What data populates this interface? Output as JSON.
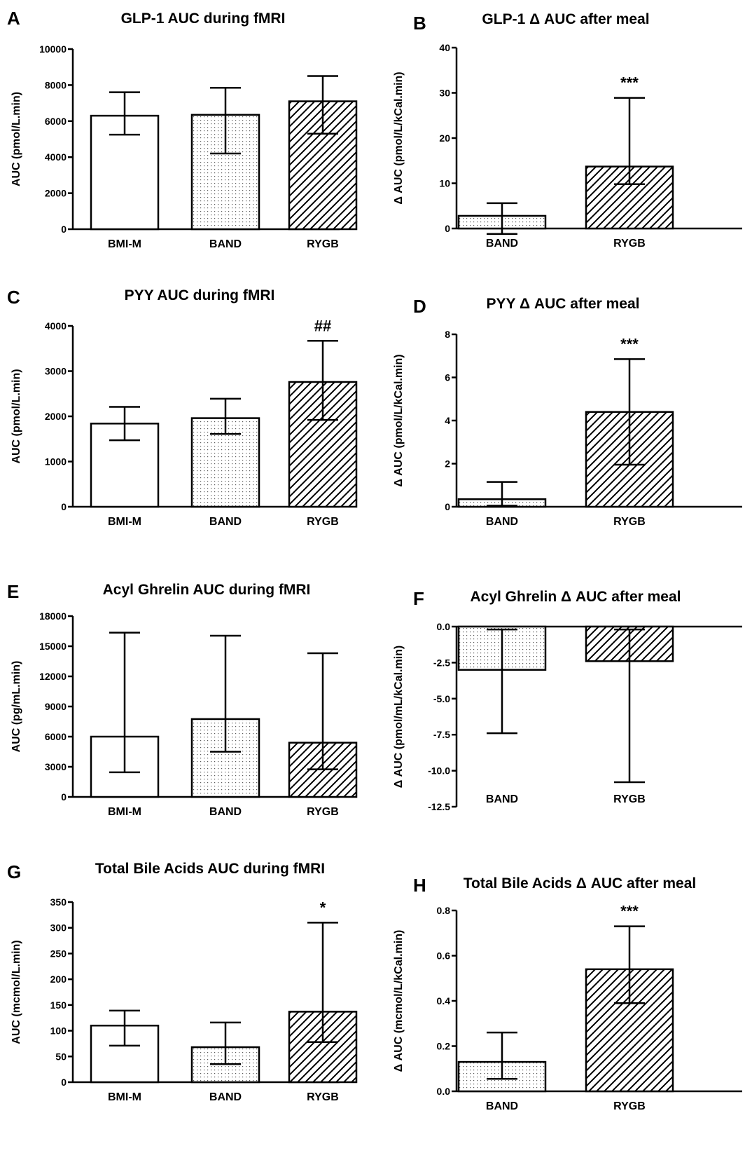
{
  "figure": {
    "background": "#ffffff",
    "bar_stroke": "#000000"
  },
  "chart_data": [
    {
      "letter": "A",
      "type": "bar",
      "title": "GLP-1 AUC during fMRI",
      "xlabel": "",
      "ylabel": "AUC (pmol/L.min)",
      "ylim": [
        0,
        10000
      ],
      "yticks": [
        "0",
        "2000",
        "4000",
        "6000",
        "8000",
        "10000"
      ],
      "categories": [
        "BMI-M",
        "BAND",
        "RYGB"
      ],
      "patterns": [
        "open",
        "dotted",
        "hatched"
      ],
      "values": [
        6300,
        6350,
        7100
      ],
      "error_upper": [
        7600,
        7850,
        8500
      ],
      "error_lower": [
        5250,
        4200,
        5300
      ],
      "annotations": [
        "",
        "",
        ""
      ]
    },
    {
      "letter": "B",
      "type": "bar",
      "title": "GLP-1 Δ AUC after meal",
      "xlabel": "",
      "ylabel": "Δ AUC (pmol/L/kCal.min)",
      "ylim": [
        0,
        40
      ],
      "yticks": [
        "0",
        "10",
        "20",
        "30",
        "40"
      ],
      "categories": [
        "BAND",
        "RYGB"
      ],
      "patterns": [
        "dotted",
        "hatched"
      ],
      "values": [
        2.8,
        13.7
      ],
      "error_upper": [
        5.6,
        28.9
      ],
      "error_lower": [
        -1.2,
        9.8
      ],
      "annotations": [
        "",
        "***"
      ]
    },
    {
      "letter": "C",
      "type": "bar",
      "title": "PYY AUC during fMRI",
      "xlabel": "",
      "ylabel": "AUC (pmol/L.min)",
      "ylim": [
        0,
        4000
      ],
      "yticks": [
        "0",
        "1000",
        "2000",
        "3000",
        "4000"
      ],
      "categories": [
        "BMI-M",
        "BAND",
        "RYGB"
      ],
      "patterns": [
        "open",
        "dotted",
        "hatched"
      ],
      "values": [
        1840,
        1960,
        2760
      ],
      "error_upper": [
        2210,
        2390,
        3670
      ],
      "error_lower": [
        1470,
        1610,
        1920
      ],
      "annotations": [
        "",
        "",
        "##"
      ]
    },
    {
      "letter": "D",
      "type": "bar",
      "title": "PYY Δ AUC after meal",
      "xlabel": "",
      "ylabel": "Δ AUC (pmol/L/kCal.min)",
      "ylim": [
        0,
        8
      ],
      "yticks": [
        "0",
        "2",
        "4",
        "6",
        "8"
      ],
      "categories": [
        "BAND",
        "RYGB"
      ],
      "patterns": [
        "dotted",
        "hatched"
      ],
      "values": [
        0.35,
        4.4
      ],
      "error_upper": [
        1.15,
        6.85
      ],
      "error_lower": [
        0.05,
        1.95
      ],
      "annotations": [
        "",
        "***"
      ]
    },
    {
      "letter": "E",
      "type": "bar",
      "title": "Acyl Ghrelin AUC during fMRI",
      "xlabel": "",
      "ylabel": "AUC (pg/mL.min)",
      "ylim": [
        0,
        18000
      ],
      "yticks": [
        "0",
        "3000",
        "6000",
        "9000",
        "12000",
        "15000",
        "18000"
      ],
      "categories": [
        "BMI-M",
        "BAND",
        "RYGB"
      ],
      "patterns": [
        "open",
        "dotted",
        "hatched"
      ],
      "values": [
        6000,
        7750,
        5400
      ],
      "error_upper": [
        16350,
        16050,
        14300
      ],
      "error_lower": [
        2450,
        4500,
        2750
      ],
      "annotations": [
        "",
        "",
        ""
      ]
    },
    {
      "letter": "F",
      "type": "bar",
      "title": "Acyl Ghrelin Δ AUC after meal",
      "xlabel": "",
      "ylabel": "Δ AUC (pmol/mL/kCal.min)",
      "ylim": [
        -12.5,
        0
      ],
      "yticks": [
        "-12.5",
        "-10.0",
        "-7.5",
        "-5.0",
        "-2.5",
        "0.0"
      ],
      "categories": [
        "BAND",
        "RYGB"
      ],
      "patterns": [
        "dotted",
        "hatched"
      ],
      "values": [
        -3.0,
        -2.4
      ],
      "error_upper": [
        -0.2,
        -0.2
      ],
      "error_lower": [
        -7.4,
        -10.8
      ],
      "annotations": [
        "",
        ""
      ]
    },
    {
      "letter": "G",
      "type": "bar",
      "title": "Total Bile Acids AUC during fMRI",
      "xlabel": "",
      "ylabel": "AUC (mcmol/L.min)",
      "ylim": [
        0,
        350
      ],
      "yticks": [
        "0",
        "50",
        "100",
        "150",
        "200",
        "250",
        "300",
        "350"
      ],
      "categories": [
        "BMI-M",
        "BAND",
        "RYGB"
      ],
      "patterns": [
        "open",
        "dotted",
        "hatched"
      ],
      "values": [
        110,
        68,
        137
      ],
      "error_upper": [
        139,
        116,
        310
      ],
      "error_lower": [
        71,
        35,
        78
      ],
      "annotations": [
        "",
        "",
        "*"
      ]
    },
    {
      "letter": "H",
      "type": "bar",
      "title": "Total Bile Acids Δ AUC after meal",
      "xlabel": "",
      "ylabel": "Δ AUC (mcmol/L/kCal.min)",
      "ylim": [
        0,
        0.8
      ],
      "yticks": [
        "0.0",
        "0.2",
        "0.4",
        "0.6",
        "0.8"
      ],
      "categories": [
        "BAND",
        "RYGB"
      ],
      "patterns": [
        "dotted",
        "hatched"
      ],
      "values": [
        0.13,
        0.54
      ],
      "error_upper": [
        0.26,
        0.73
      ],
      "error_lower": [
        0.055,
        0.39
      ],
      "annotations": [
        "",
        "***"
      ]
    }
  ]
}
